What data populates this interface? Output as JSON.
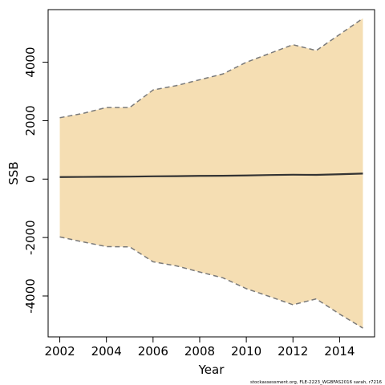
{
  "chart_data": {
    "type": "area",
    "xlabel": "Year",
    "ylabel": "SSB",
    "xlim": [
      2001.5,
      2015.5
    ],
    "ylim": [
      -5400,
      5800
    ],
    "x_ticks": [
      2002,
      2004,
      2006,
      2008,
      2010,
      2012,
      2014
    ],
    "y_ticks": [
      -4000,
      -2000,
      0,
      2000,
      4000
    ],
    "grid": false,
    "x": [
      2002,
      2003,
      2004,
      2005,
      2006,
      2007,
      2008,
      2009,
      2010,
      2011,
      2012,
      2013,
      2014,
      2015
    ],
    "series": [
      {
        "values": [
          70,
          75,
          80,
          85,
          95,
          100,
          110,
          115,
          125,
          140,
          150,
          145,
          165,
          190
        ],
        "line_color": "#333333"
      },
      {
        "values": [
          2100,
          2250,
          2450,
          2450,
          3050,
          3200,
          3400,
          3600,
          4000,
          4300,
          4600,
          4400,
          4950,
          5500
        ],
        "line_color": "#7a7a7a",
        "dash": true
      },
      {
        "values": [
          -1980,
          -2150,
          -2310,
          -2320,
          -2830,
          -2970,
          -3180,
          -3380,
          -3750,
          -4020,
          -4300,
          -4100,
          -4620,
          -5100
        ],
        "line_color": "#7a7a7a",
        "dash": true
      }
    ],
    "band_fill": "#f5deb3"
  },
  "footer": "stockassessment.org, FLE-2223_WGBFAS2016 sarah, r7216"
}
